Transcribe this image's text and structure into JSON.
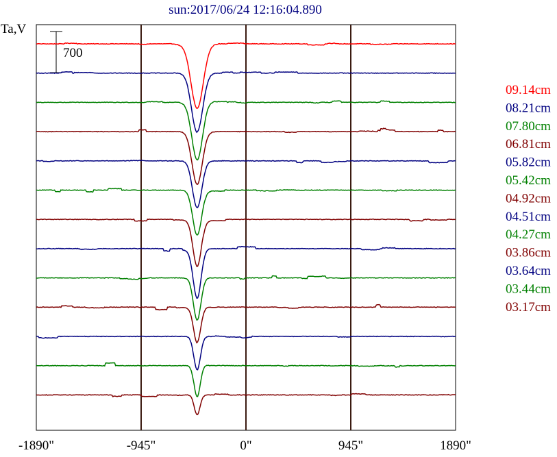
{
  "chart_data": {
    "type": "line",
    "title": "sun:2017/06/24 12:16:04.890",
    "ylabel": "Ta,V",
    "scale_bar_label": "700",
    "x_ticks": [
      {
        "value": -1890,
        "label": "-1890\""
      },
      {
        "value": -945,
        "label": "-945\""
      },
      {
        "value": 0,
        "label": "0\""
      },
      {
        "value": 945,
        "label": "945\""
      },
      {
        "value": 1890,
        "label": "1890\""
      }
    ],
    "xlim": [
      -1890,
      1890
    ],
    "vertical_gridlines_at": [
      -945,
      0,
      945
    ],
    "grid_color": "#3a1a10",
    "dip_center_x": -440,
    "series": [
      {
        "name": "09.14cm",
        "color": "#ff0000",
        "dip_depth": 1100,
        "dip_width": 55
      },
      {
        "name": "08.21cm",
        "color": "#000080",
        "dip_depth": 1000,
        "dip_width": 50
      },
      {
        "name": "07.80cm",
        "color": "#008000",
        "dip_depth": 980,
        "dip_width": 48
      },
      {
        "name": "06.81cm",
        "color": "#800000",
        "dip_depth": 900,
        "dip_width": 46
      },
      {
        "name": "05.82cm",
        "color": "#000080",
        "dip_depth": 800,
        "dip_width": 42
      },
      {
        "name": "05.42cm",
        "color": "#008000",
        "dip_depth": 770,
        "dip_width": 40
      },
      {
        "name": "04.92cm",
        "color": "#800000",
        "dip_depth": 800,
        "dip_width": 38
      },
      {
        "name": "04.51cm",
        "color": "#000080",
        "dip_depth": 820,
        "dip_width": 36
      },
      {
        "name": "04.27cm",
        "color": "#008000",
        "dip_depth": 720,
        "dip_width": 34
      },
      {
        "name": "03.86cm",
        "color": "#800000",
        "dip_depth": 600,
        "dip_width": 32
      },
      {
        "name": "03.64cm",
        "color": "#000080",
        "dip_depth": 570,
        "dip_width": 30
      },
      {
        "name": "03.44cm",
        "color": "#008000",
        "dip_depth": 540,
        "dip_width": 28
      },
      {
        "name": "03.17cm",
        "color": "#800000",
        "dip_depth": 340,
        "dip_width": 26
      }
    ]
  }
}
